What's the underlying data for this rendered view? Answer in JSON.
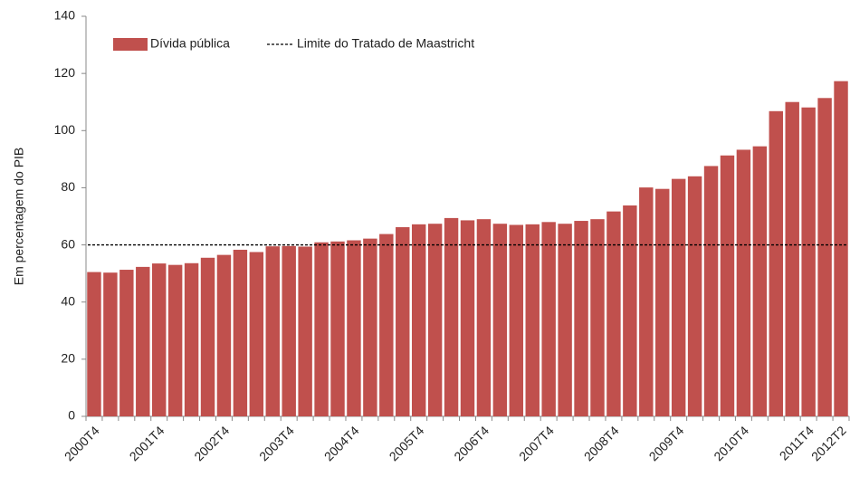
{
  "chart_data": {
    "type": "bar",
    "y_label": "Em percentagem do PIB",
    "categories": [
      "2000T4",
      null,
      null,
      null,
      "2001T4",
      null,
      null,
      null,
      "2002T4",
      null,
      null,
      null,
      "2003T4",
      null,
      null,
      null,
      "2004T4",
      null,
      null,
      null,
      "2005T4",
      null,
      null,
      null,
      "2006T4",
      null,
      null,
      null,
      "2007T4",
      null,
      null,
      null,
      "2008T4",
      null,
      null,
      null,
      "2009T4",
      null,
      null,
      null,
      "2010T4",
      null,
      null,
      null,
      "2011T4",
      null,
      "2012T2"
    ],
    "series": [
      {
        "name": "Dívida pública",
        "color": "#c0504d",
        "values": [
          50.5,
          50.3,
          51.3,
          52.3,
          53.5,
          53.0,
          53.6,
          55.5,
          56.5,
          58.3,
          57.5,
          59.5,
          59.6,
          59.4,
          60.9,
          61.2,
          61.6,
          62.2,
          63.8,
          66.2,
          67.2,
          67.4,
          69.4,
          68.6,
          69.0,
          67.4,
          67.0,
          67.2,
          68.0,
          67.4,
          68.4,
          69.0,
          71.7,
          73.8,
          80.1,
          79.6,
          83.1,
          84.0,
          87.6,
          91.3,
          93.3,
          94.5,
          106.8,
          110.0,
          108.1,
          111.4,
          117.3
        ]
      }
    ],
    "limit": {
      "name": "Limite do Tratado de Maastricht",
      "value": 60,
      "color": "#000000"
    },
    "ylim": [
      0,
      140
    ],
    "yticks": [
      0,
      20,
      40,
      60,
      80,
      100,
      120,
      140
    ],
    "legend": "top-left"
  }
}
